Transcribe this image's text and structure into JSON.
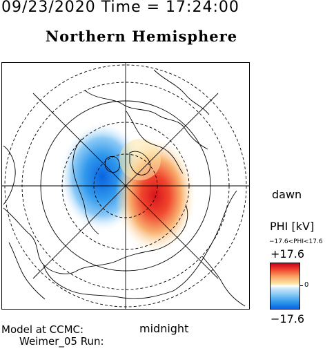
{
  "header": {
    "datetime": "09/23/2020 Time = 17:24:00",
    "title": "Northern Hemisphere"
  },
  "map": {
    "projection": "north polar stereographic",
    "orientation": {
      "dawn_label": "dawn",
      "midnight_label": "midnight"
    },
    "pattern": {
      "negative_cell": "dusk side (blue)",
      "positive_cell": "dawn side (red)"
    }
  },
  "colorbar": {
    "title": "PHI [kV]",
    "range_text": "−17.6<PHI<17.6",
    "max_label": "+17.6",
    "zero_label": "0",
    "min_label": "−17.6",
    "colors": {
      "max": "#c9001a",
      "zero": "#ffffff",
      "min": "#0a63e0"
    }
  },
  "footer": {
    "line1": "Model at CCMC:",
    "line2": "Weimer_05 Run:"
  }
}
